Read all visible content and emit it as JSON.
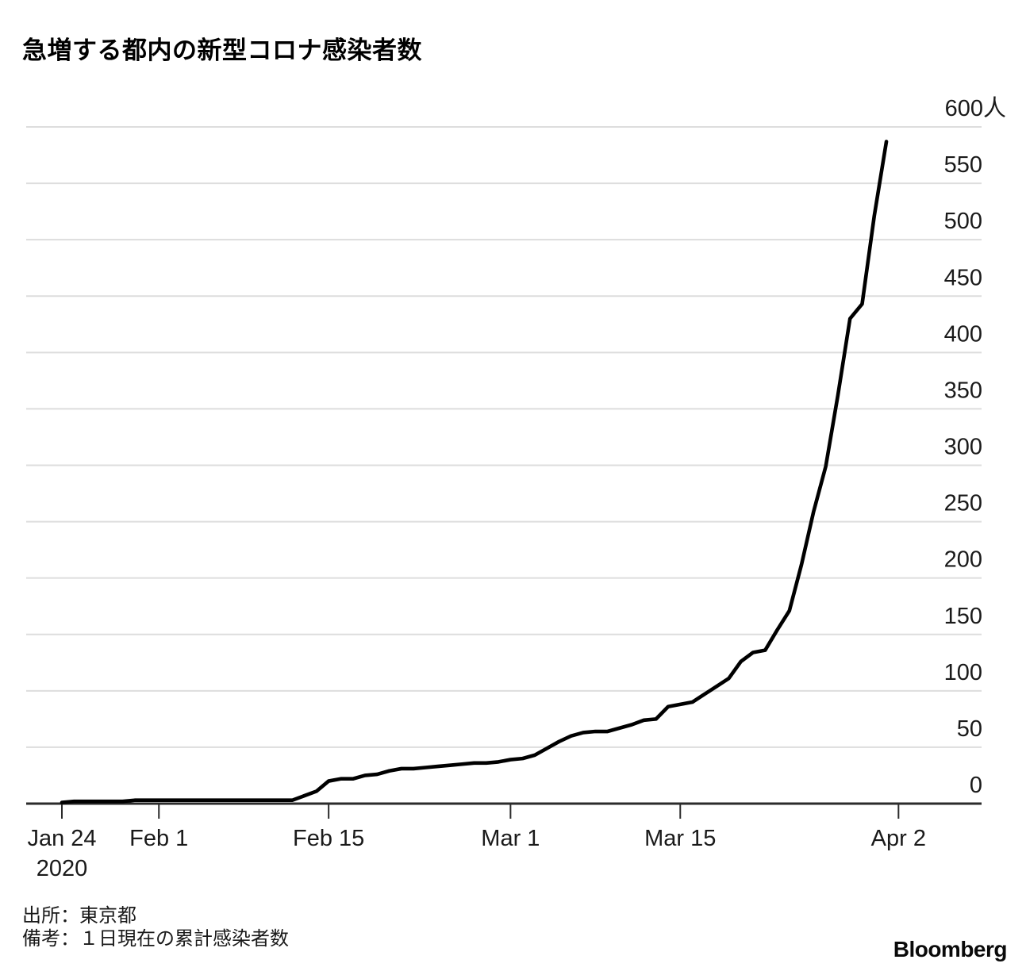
{
  "chart_data": {
    "type": "line",
    "title": "急増する都内の新型コロナ感染者数",
    "unit": "人",
    "ylim": [
      0,
      600
    ],
    "y_ticks": [
      0,
      50,
      100,
      150,
      200,
      250,
      300,
      350,
      400,
      450,
      500,
      550,
      600
    ],
    "y_top_label": "600人",
    "x_ticks": [
      {
        "label": "Jan 24",
        "sublabel": "2020",
        "day_index": 0
      },
      {
        "label": "Feb 1",
        "day_index": 8
      },
      {
        "label": "Feb 15",
        "day_index": 22
      },
      {
        "label": "Mar 1",
        "day_index": 37
      },
      {
        "label": "Mar 15",
        "day_index": 51
      },
      {
        "label": "Apr 2",
        "day_index": 69
      }
    ],
    "grid": true,
    "legend": false,
    "dates": [
      "1/24",
      "1/25",
      "1/26",
      "1/27",
      "1/28",
      "1/29",
      "1/30",
      "1/31",
      "2/1",
      "2/2",
      "2/3",
      "2/4",
      "2/5",
      "2/6",
      "2/7",
      "2/8",
      "2/9",
      "2/10",
      "2/11",
      "2/12",
      "2/13",
      "2/14",
      "2/15",
      "2/16",
      "2/17",
      "2/18",
      "2/19",
      "2/20",
      "2/21",
      "2/22",
      "2/23",
      "2/24",
      "2/25",
      "2/26",
      "2/27",
      "2/28",
      "2/29",
      "3/1",
      "3/2",
      "3/3",
      "3/4",
      "3/5",
      "3/6",
      "3/7",
      "3/8",
      "3/9",
      "3/10",
      "3/11",
      "3/12",
      "3/13",
      "3/14",
      "3/15",
      "3/16",
      "3/17",
      "3/18",
      "3/19",
      "3/20",
      "3/21",
      "3/22",
      "3/23",
      "3/24",
      "3/25",
      "3/26",
      "3/27",
      "3/28",
      "3/29",
      "3/30",
      "3/31",
      "4/1"
    ],
    "values": [
      1,
      2,
      2,
      2,
      2,
      2,
      3,
      3,
      3,
      3,
      3,
      3,
      3,
      3,
      3,
      3,
      3,
      3,
      3,
      3,
      7,
      11,
      20,
      22,
      22,
      25,
      26,
      29,
      31,
      31,
      32,
      33,
      34,
      35,
      36,
      36,
      37,
      39,
      40,
      43,
      49,
      55,
      60,
      63,
      64,
      64,
      67,
      70,
      74,
      75,
      86,
      88,
      90,
      97,
      104,
      111,
      126,
      134,
      136,
      154,
      171,
      212,
      259,
      299,
      362,
      430,
      443,
      521,
      587
    ],
    "colors": {
      "line": "#000000",
      "grid": "#dddddd",
      "axis": "#2b2b2b",
      "text": "#1a1a1a"
    }
  },
  "footer": {
    "source": "出所：東京都",
    "note": "備考：１日現在の累計感染者数",
    "brand": "Bloomberg"
  }
}
